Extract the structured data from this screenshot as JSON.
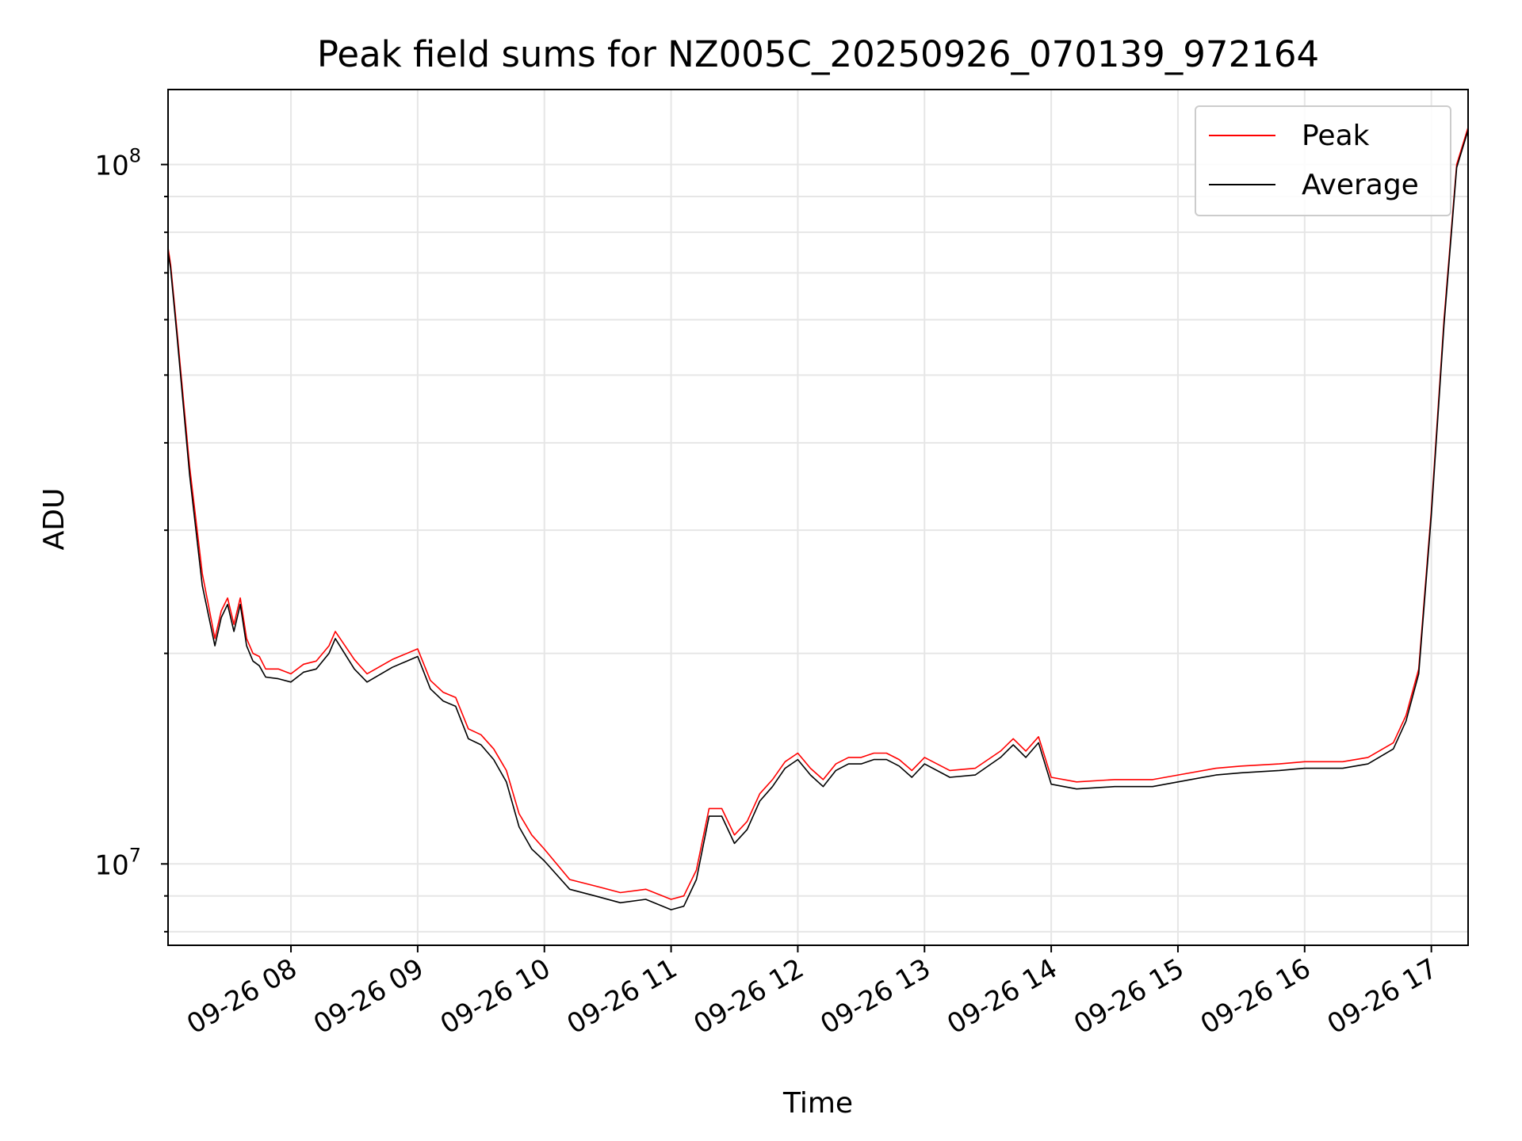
{
  "chart_data": {
    "type": "line",
    "title": "Peak field sums for NZ005C_20250926_070139_972164",
    "xlabel": "Time",
    "ylabel": "ADU",
    "x_unit": "hour of 2025-09-26",
    "xlim": [
      7.03,
      17.29
    ],
    "y_scale": "log",
    "ylim": [
      7650000,
      128000000
    ],
    "x_ticks": [
      {
        "x": 8,
        "label": "09-26 08"
      },
      {
        "x": 9,
        "label": "09-26 09"
      },
      {
        "x": 10,
        "label": "09-26 10"
      },
      {
        "x": 11,
        "label": "09-26 11"
      },
      {
        "x": 12,
        "label": "09-26 12"
      },
      {
        "x": 13,
        "label": "09-26 13"
      },
      {
        "x": 14,
        "label": "09-26 14"
      },
      {
        "x": 15,
        "label": "09-26 15"
      },
      {
        "x": 16,
        "label": "09-26 16"
      },
      {
        "x": 17,
        "label": "09-26 17"
      }
    ],
    "y_ticks": [
      {
        "value": 10000000,
        "base": "10",
        "exp": "7"
      },
      {
        "value": 100000000,
        "base": "10",
        "exp": "8"
      }
    ],
    "grid": true,
    "legend_position": "top-right",
    "series": [
      {
        "name": "Peak",
        "color": "#ff0000",
        "x": [
          7.03,
          7.05,
          7.1,
          7.2,
          7.3,
          7.4,
          7.45,
          7.5,
          7.55,
          7.6,
          7.65,
          7.7,
          7.75,
          7.8,
          7.9,
          8.0,
          8.1,
          8.2,
          8.3,
          8.35,
          8.5,
          8.6,
          8.8,
          9.0,
          9.1,
          9.2,
          9.3,
          9.4,
          9.5,
          9.6,
          9.7,
          9.8,
          9.9,
          10.0,
          10.2,
          10.4,
          10.6,
          10.8,
          11.0,
          11.1,
          11.2,
          11.3,
          11.4,
          11.5,
          11.6,
          11.7,
          11.8,
          11.9,
          12.0,
          12.1,
          12.2,
          12.3,
          12.4,
          12.5,
          12.6,
          12.7,
          12.8,
          12.9,
          13.0,
          13.2,
          13.4,
          13.6,
          13.7,
          13.8,
          13.9,
          14.0,
          14.2,
          14.5,
          14.8,
          15.0,
          15.3,
          15.5,
          15.8,
          16.0,
          16.3,
          16.5,
          16.7,
          16.8,
          16.9,
          17.0,
          17.1,
          17.2,
          17.29
        ],
        "values": [
          76000000,
          72000000,
          58000000,
          37000000,
          26000000,
          21000000,
          23000000,
          24000000,
          22000000,
          24000000,
          21000000,
          20000000,
          19800000,
          19000000,
          19000000,
          18700000,
          19300000,
          19500000,
          20500000,
          21500000,
          19600000,
          18700000,
          19600000,
          20300000,
          18300000,
          17600000,
          17300000,
          15600000,
          15300000,
          14600000,
          13600000,
          11800000,
          11000000,
          10500000,
          9500000,
          9300000,
          9100000,
          9200000,
          8900000,
          9000000,
          9800000,
          12000000,
          12000000,
          11000000,
          11500000,
          12600000,
          13200000,
          14000000,
          14400000,
          13700000,
          13200000,
          13900000,
          14200000,
          14200000,
          14400000,
          14400000,
          14100000,
          13600000,
          14200000,
          13600000,
          13700000,
          14500000,
          15100000,
          14500000,
          15200000,
          13300000,
          13100000,
          13200000,
          13200000,
          13400000,
          13700000,
          13800000,
          13900000,
          14000000,
          14000000,
          14200000,
          14900000,
          16300000,
          19000000,
          32000000,
          60000000,
          100000000,
          113000000
        ]
      },
      {
        "name": "Average",
        "color": "#000000",
        "x": [
          7.03,
          7.05,
          7.1,
          7.2,
          7.3,
          7.4,
          7.45,
          7.5,
          7.55,
          7.6,
          7.65,
          7.7,
          7.75,
          7.8,
          7.9,
          8.0,
          8.1,
          8.2,
          8.3,
          8.35,
          8.5,
          8.6,
          8.8,
          9.0,
          9.1,
          9.2,
          9.3,
          9.4,
          9.5,
          9.6,
          9.7,
          9.8,
          9.9,
          10.0,
          10.2,
          10.4,
          10.6,
          10.8,
          11.0,
          11.1,
          11.2,
          11.3,
          11.4,
          11.5,
          11.6,
          11.7,
          11.8,
          11.9,
          12.0,
          12.1,
          12.2,
          12.3,
          12.4,
          12.5,
          12.6,
          12.7,
          12.8,
          12.9,
          13.0,
          13.2,
          13.4,
          13.6,
          13.7,
          13.8,
          13.9,
          14.0,
          14.2,
          14.5,
          14.8,
          15.0,
          15.3,
          15.5,
          15.8,
          16.0,
          16.3,
          16.5,
          16.7,
          16.8,
          16.9,
          17.0,
          17.1,
          17.2,
          17.29
        ],
        "values": [
          75000000,
          71000000,
          57000000,
          36000000,
          25000000,
          20500000,
          22500000,
          23500000,
          21500000,
          23500000,
          20500000,
          19500000,
          19200000,
          18500000,
          18400000,
          18200000,
          18800000,
          19000000,
          20000000,
          21000000,
          19000000,
          18200000,
          19100000,
          19800000,
          17800000,
          17100000,
          16800000,
          15100000,
          14800000,
          14100000,
          13100000,
          11300000,
          10500000,
          10100000,
          9200000,
          9000000,
          8800000,
          8900000,
          8600000,
          8700000,
          9500000,
          11700000,
          11700000,
          10700000,
          11200000,
          12300000,
          12900000,
          13700000,
          14100000,
          13400000,
          12900000,
          13600000,
          13900000,
          13900000,
          14100000,
          14100000,
          13800000,
          13300000,
          13900000,
          13300000,
          13400000,
          14200000,
          14800000,
          14200000,
          14900000,
          13000000,
          12800000,
          12900000,
          12900000,
          13100000,
          13400000,
          13500000,
          13600000,
          13700000,
          13700000,
          13900000,
          14600000,
          16000000,
          18700000,
          31500000,
          59000000,
          99000000,
          112000000
        ]
      }
    ]
  }
}
